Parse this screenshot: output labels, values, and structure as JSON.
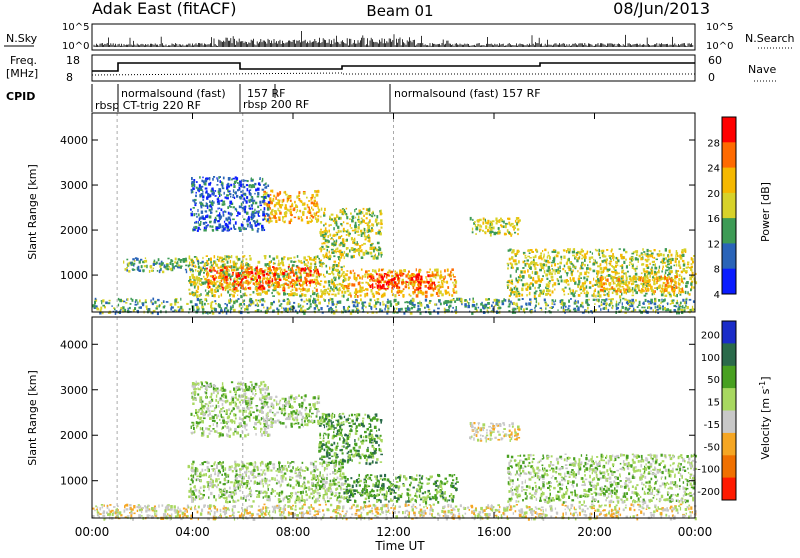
{
  "header": {
    "station": "Adak East (fitACF)",
    "beam": "Beam 01",
    "date": "08/Jun/2013"
  },
  "top_panels": {
    "nsky_label": "N.Sky",
    "nsky_ticks": [
      "10^5",
      "10^0"
    ],
    "nsearch_label": "N.Search",
    "freq_label_1": "Freq.",
    "freq_label_2": "[MHz]",
    "freq_ticks": [
      "18",
      "8"
    ],
    "nave_label": "Nave",
    "nave_ticks": [
      "60",
      "0"
    ],
    "cpid_label": "CPID",
    "cpid_segments": [
      "rbsp CT-trig 220 RF",
      "normalsound (fast)",
      "157 RF",
      "rbsp 200 RF",
      "normalsound (fast) 157 RF"
    ]
  },
  "chart_data": [
    {
      "type": "heatmap",
      "name": "power",
      "ylabel": "Slant Range [km]",
      "yticks": [
        1000,
        2000,
        3000,
        4000
      ],
      "ylim": [
        180,
        4600
      ],
      "xlim": [
        0,
        24
      ],
      "colorbar": {
        "label": "Power [dB]",
        "ticks": [
          "28",
          "24",
          "20",
          "16",
          "12",
          "8",
          "4"
        ],
        "colors": [
          "#ff0000",
          "#ff6a00",
          "#f5b800",
          "#d7d22a",
          "#3d9b55",
          "#2a64b8",
          "#0a1cff"
        ]
      },
      "echo_regions": [
        {
          "t0": 0.0,
          "t1": 24.0,
          "r0": 180,
          "r1": 500,
          "level": 2
        },
        {
          "t0": 3.8,
          "t1": 10.0,
          "r0": 550,
          "r1": 1450,
          "level": 3
        },
        {
          "t0": 4.5,
          "t1": 9.0,
          "r0": 700,
          "r1": 1200,
          "level": 5
        },
        {
          "t0": 10.0,
          "t1": 14.5,
          "r0": 550,
          "r1": 1150,
          "level": 4
        },
        {
          "t0": 11.0,
          "t1": 13.8,
          "r0": 700,
          "r1": 1050,
          "level": 6
        },
        {
          "t0": 6.8,
          "t1": 9.0,
          "r0": 2200,
          "r1": 2900,
          "level": 4
        },
        {
          "t0": 9.0,
          "t1": 11.5,
          "r0": 1400,
          "r1": 2500,
          "level": 3
        },
        {
          "t0": 1.2,
          "t1": 4.5,
          "r0": 1100,
          "r1": 1400,
          "level": 2
        },
        {
          "t0": 3.9,
          "t1": 7.0,
          "r0": 2000,
          "r1": 3200,
          "level": 1
        },
        {
          "t0": 15.0,
          "t1": 17.0,
          "r0": 1900,
          "r1": 2300,
          "level": 3
        },
        {
          "t0": 16.5,
          "t1": 24.0,
          "r0": 550,
          "r1": 1600,
          "level": 3
        },
        {
          "t0": 20.0,
          "t1": 23.5,
          "r0": 650,
          "r1": 1000,
          "level": 4
        }
      ]
    },
    {
      "type": "heatmap",
      "name": "velocity",
      "ylabel": "Slant Range [km]",
      "yticks": [
        1000,
        2000,
        3000,
        4000
      ],
      "ylim": [
        180,
        4600
      ],
      "xlim": [
        0,
        24
      ],
      "colorbar": {
        "label": "Velocity [m s",
        "label_sup": "-1",
        "label_end": "]",
        "ticks": [
          "200",
          "100",
          "50",
          "15",
          "-15",
          "-50",
          "-100",
          "-200"
        ],
        "colors": [
          "#1a2cc8",
          "#2a6a4a",
          "#48a020",
          "#a8d860",
          "#c8c8c8",
          "#f5a623",
          "#f07000",
          "#ff1a00"
        ]
      },
      "echo_regions": [
        {
          "t0": 0.0,
          "t1": 24.0,
          "r0": 180,
          "r1": 500,
          "level": 3
        },
        {
          "t0": 3.8,
          "t1": 10.0,
          "r0": 550,
          "r1": 1450,
          "level": 4
        },
        {
          "t0": 10.0,
          "t1": 14.5,
          "r0": 550,
          "r1": 1150,
          "level": 5
        },
        {
          "t0": 6.8,
          "t1": 9.0,
          "r0": 2200,
          "r1": 2900,
          "level": 4
        },
        {
          "t0": 9.0,
          "t1": 11.5,
          "r0": 1400,
          "r1": 2500,
          "level": 5
        },
        {
          "t0": 3.9,
          "t1": 7.0,
          "r0": 2000,
          "r1": 3200,
          "level": 4
        },
        {
          "t0": 15.0,
          "t1": 17.0,
          "r0": 1900,
          "r1": 2300,
          "level": 3
        },
        {
          "t0": 16.5,
          "t1": 24.0,
          "r0": 550,
          "r1": 1600,
          "level": 4
        }
      ]
    }
  ],
  "xaxis": {
    "ticks": [
      "00:00",
      "04:00",
      "08:00",
      "12:00",
      "16:00",
      "20:00",
      "00:00"
    ],
    "label": "Time UT"
  }
}
